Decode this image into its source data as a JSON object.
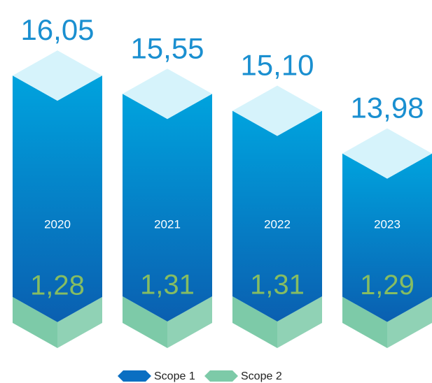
{
  "chart_data": {
    "type": "bar3d",
    "categories": [
      "2020",
      "2021",
      "2022",
      "2023"
    ],
    "series": [
      {
        "name": "Scope 1",
        "color": "#0a6fc2",
        "values": [
          16.05,
          15.55,
          15.1,
          13.98
        ],
        "value_labels": [
          "16,05",
          "15,55",
          "15,10",
          "13,98"
        ]
      },
      {
        "name": "Scope 2",
        "color": "#7dcaa8",
        "values": [
          1.28,
          1.31,
          1.31,
          1.29
        ],
        "value_labels": [
          "1,28",
          "1,31",
          "1,31",
          "1,29"
        ]
      }
    ]
  }
}
